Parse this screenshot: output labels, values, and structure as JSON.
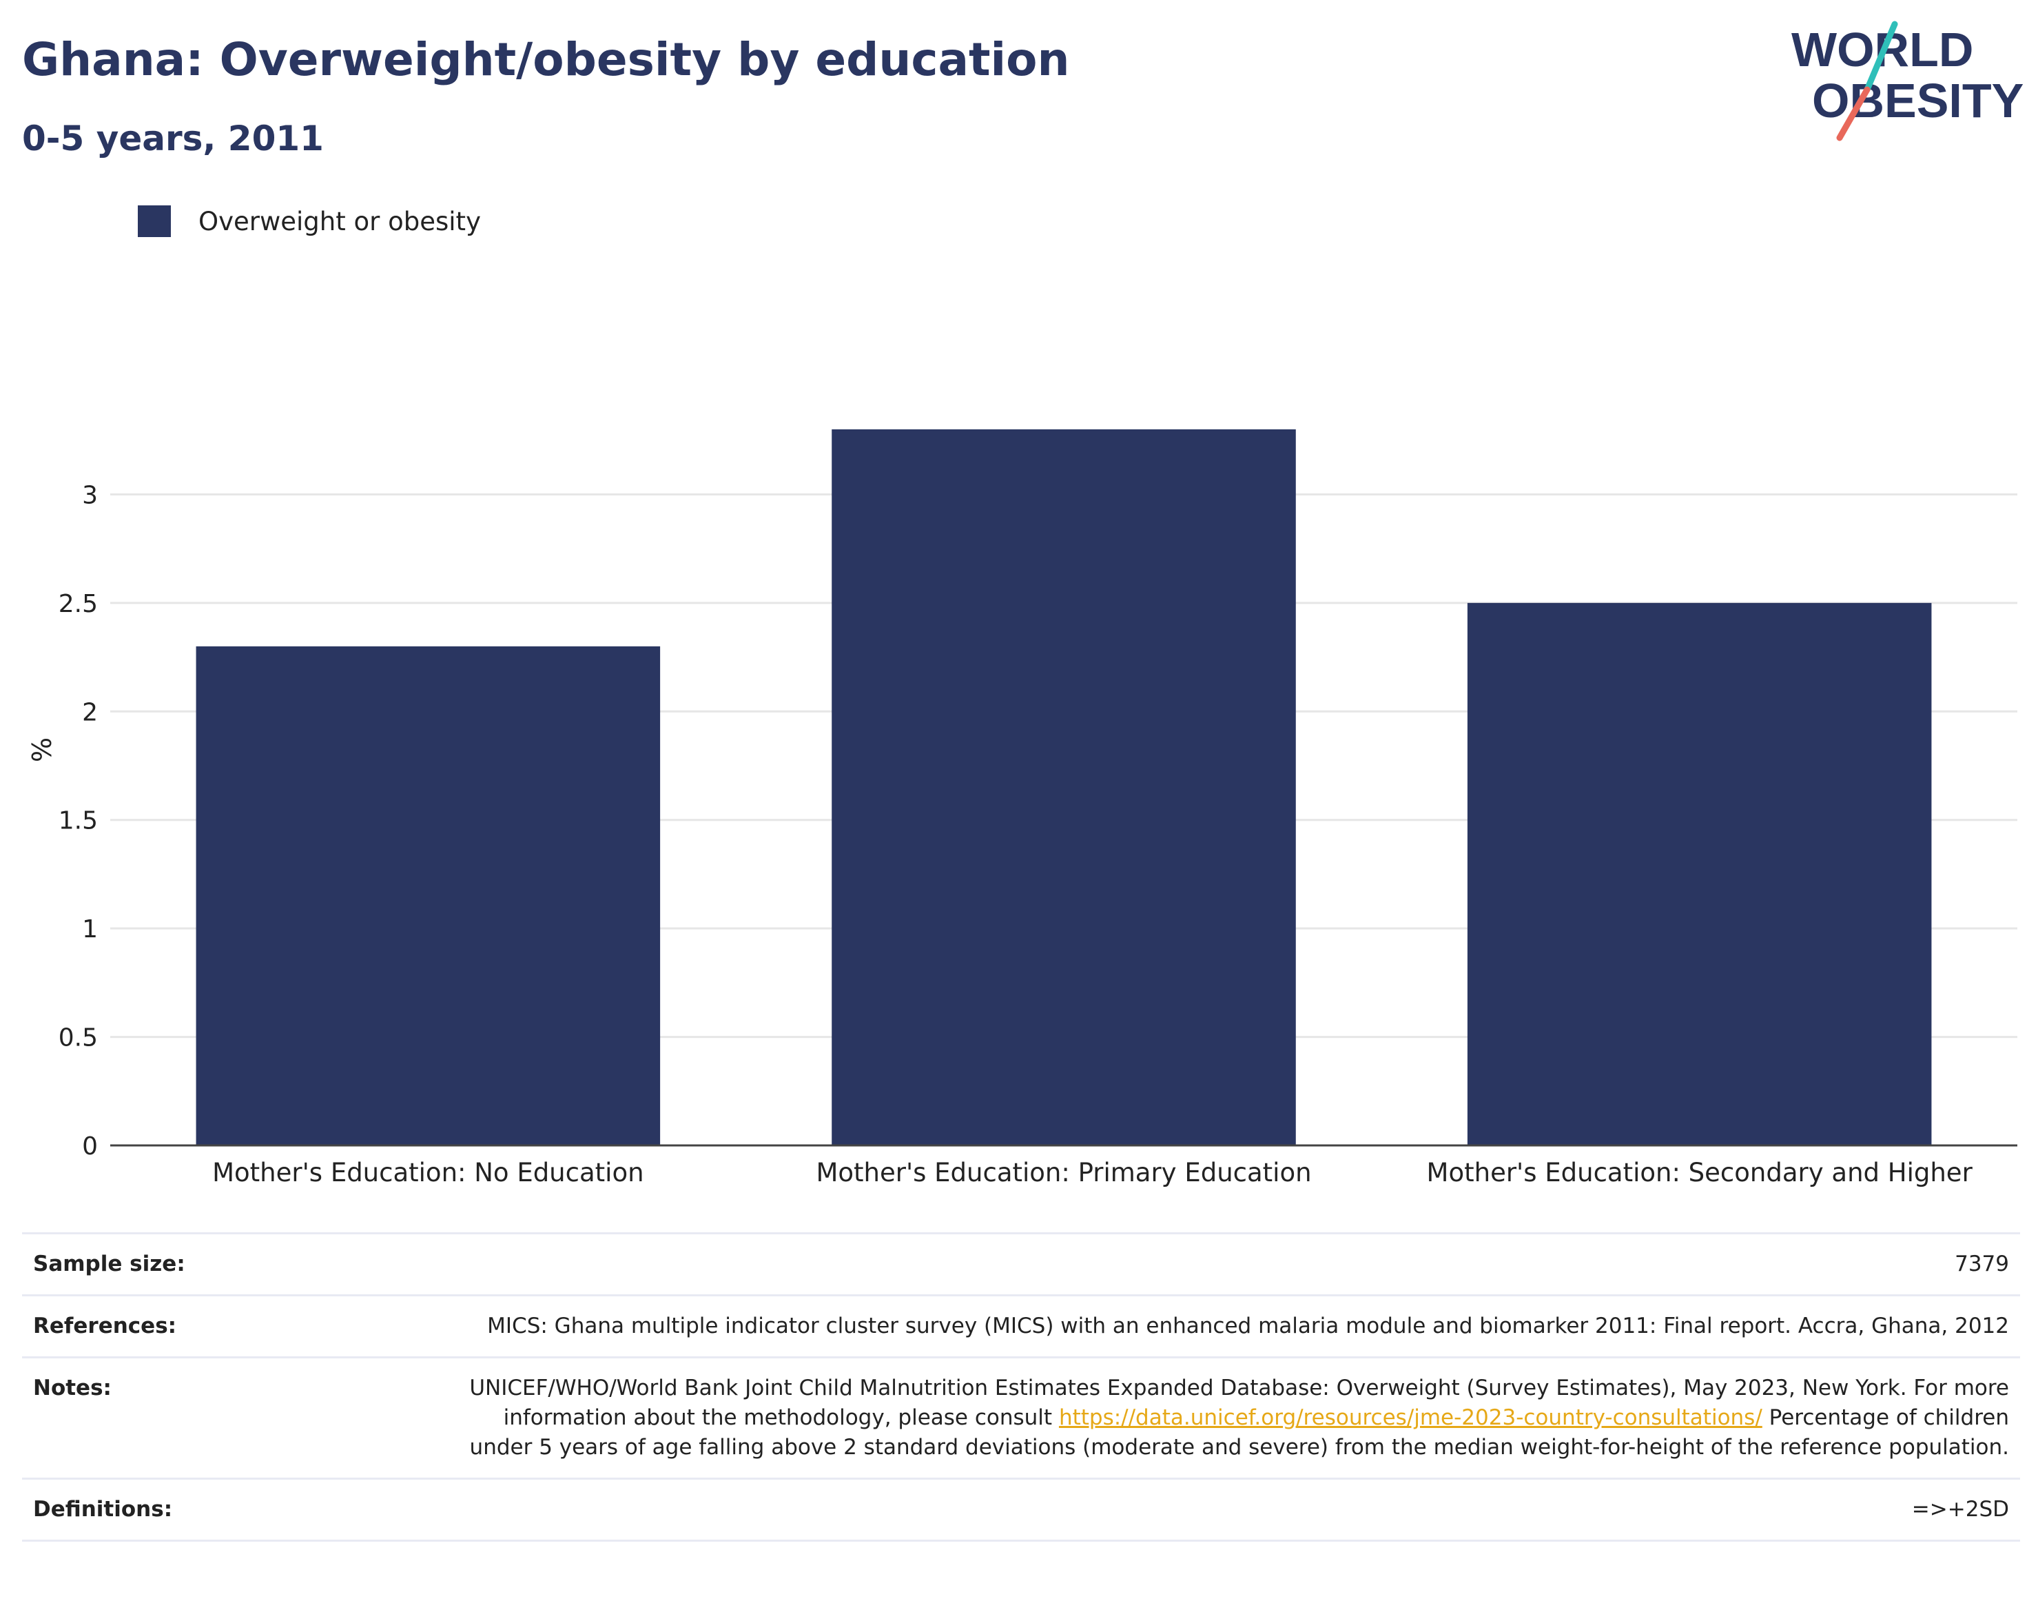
{
  "title": "Ghana: Overweight/obesity by education",
  "subtitle": "0-5 years, 2011",
  "logo": {
    "line1": "WORLD",
    "line2": "OBESITY",
    "colors": {
      "text": "#2a3661",
      "slash_top": "#2fbfb9",
      "slash_bottom": "#e8685a"
    }
  },
  "legend": {
    "label": "Overweight or obesity",
    "color": "#2a3661"
  },
  "chart_data": {
    "type": "bar",
    "categories": [
      "Mother's Education: No Education",
      "Mother's Education: Primary Education",
      "Mother's Education: Secondary and Higher"
    ],
    "series": [
      {
        "name": "Overweight or obesity",
        "values": [
          2.3,
          3.3,
          2.5
        ],
        "color": "#2a3661"
      }
    ],
    "ylabel": "%",
    "ylim": [
      0,
      3.5
    ],
    "yticks": [
      0,
      0.5,
      1,
      1.5,
      2,
      2.5,
      3
    ],
    "ytick_labels": [
      "0",
      "0.5",
      "1",
      "1.5",
      "2",
      "2.5",
      "3"
    ],
    "grid": true
  },
  "info": {
    "sample_size_label": "Sample size:",
    "sample_size_value": "7379",
    "references_label": "References:",
    "references_value": "MICS: Ghana multiple indicator cluster survey (MICS) with an enhanced malaria module and biomarker 2011: Final report. Accra, Ghana, 2012",
    "notes_label": "Notes:",
    "notes_value_pre": "UNICEF/WHO/World Bank Joint Child Malnutrition Estimates Expanded Database: Overweight (Survey Estimates), May 2023, New York. For more information about the methodology, please consult",
    "notes_link": "https://data.unicef.org/resources/jme-2023-country-consultations/",
    "notes_value_post": "Percentage of children under 5 years of age falling above 2 standard deviations (moderate and severe) from the median weight-for-height of the reference population.",
    "definitions_label": "Definitions:",
    "definitions_value": "=>+2SD"
  }
}
